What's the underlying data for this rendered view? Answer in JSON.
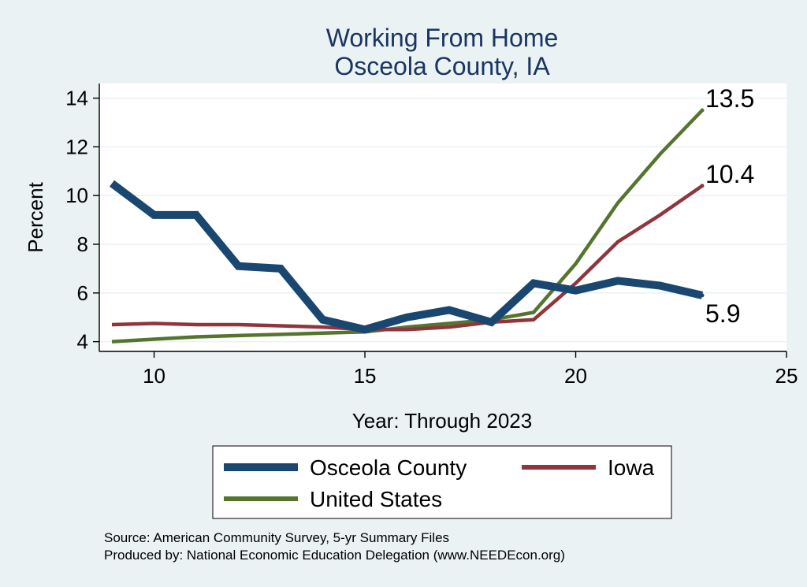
{
  "chart_data": {
    "type": "line",
    "title": [
      "Working From Home",
      "Osceola County, IA"
    ],
    "xlabel": "Year: Through 2023",
    "ylabel": "Percent",
    "xlim": [
      8.7,
      25
    ],
    "ylim": [
      3.6,
      14.6
    ],
    "xticks": [
      10,
      15,
      20,
      25
    ],
    "yticks": [
      4,
      6,
      8,
      10,
      12,
      14
    ],
    "grid": true,
    "legend_position": "bottom",
    "x": [
      9,
      10,
      11,
      12,
      13,
      14,
      15,
      16,
      17,
      18,
      19,
      20,
      21,
      22,
      23
    ],
    "series": [
      {
        "name": "Osceola County",
        "color": "#1a476f",
        "values": [
          10.5,
          9.2,
          9.2,
          7.1,
          7.0,
          4.9,
          4.5,
          5.0,
          5.3,
          4.8,
          6.4,
          6.1,
          6.5,
          6.3,
          5.9
        ],
        "end_label": "5.9"
      },
      {
        "name": "Iowa",
        "color": "#90353b",
        "values": [
          4.7,
          4.75,
          4.7,
          4.7,
          4.65,
          4.6,
          4.5,
          4.5,
          4.6,
          4.8,
          4.9,
          6.4,
          8.1,
          9.2,
          10.4
        ],
        "end_label": "10.4"
      },
      {
        "name": "United States",
        "color": "#55752f",
        "values": [
          4.0,
          4.1,
          4.2,
          4.25,
          4.3,
          4.35,
          4.4,
          4.6,
          4.75,
          4.9,
          5.2,
          7.2,
          9.7,
          11.7,
          13.5
        ],
        "end_label": "13.5"
      }
    ],
    "notes": [
      "Source: American Community Survey, 5-yr Summary Files",
      "Produced by: National Economic Education Delegation (www.NEEDEcon.org)"
    ]
  }
}
